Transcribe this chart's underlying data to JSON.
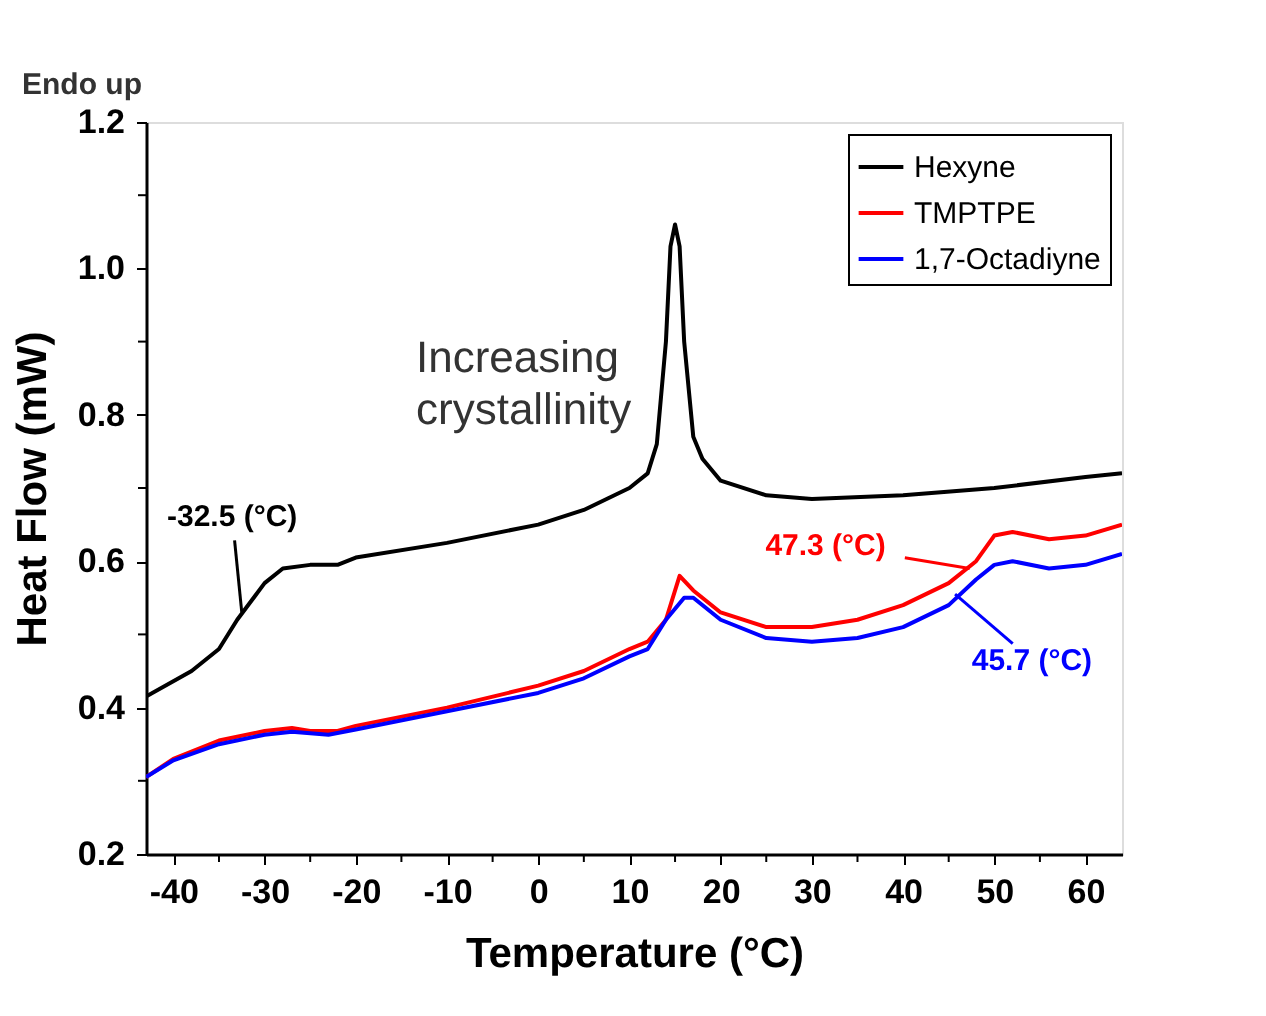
{
  "chart_data": {
    "type": "line",
    "xlabel": "Temperature (°C)",
    "ylabel": "Heat Flow (mW)",
    "xlim": [
      -43,
      64
    ],
    "ylim": [
      0.2,
      1.2
    ],
    "xticks": [
      -40,
      {
        "value": -35,
        "label": null
      },
      -30,
      {
        "value": -25,
        "label": null
      },
      -20,
      {
        "value": -15,
        "label": null
      },
      -10,
      {
        "value": -5,
        "label": null
      },
      0,
      {
        "value": 5,
        "label": null
      },
      10,
      {
        "value": 15,
        "label": null
      },
      20,
      {
        "value": 25,
        "label": null
      },
      30,
      {
        "value": 35,
        "label": null
      },
      40,
      {
        "value": 45,
        "label": null
      },
      50,
      {
        "value": 55,
        "label": null
      },
      60
    ],
    "yticks": [
      0.2,
      {
        "value": 0.3,
        "label": null
      },
      0.4,
      {
        "value": 0.5,
        "label": null
      },
      0.6,
      {
        "value": 0.7,
        "label": null
      },
      0.8,
      {
        "value": 0.9,
        "label": null
      },
      {
        "value": 1.0,
        "label": "1.0"
      },
      {
        "value": 1.1,
        "label": null
      },
      1.2
    ],
    "grid": false,
    "legend": "top right",
    "marker": "none",
    "line_style": "solid",
    "series": [
      {
        "name": "Hexyne",
        "color": "#000000",
        "x": [
          -43,
          -38,
          -35,
          -33,
          -30,
          -28,
          -25,
          -22,
          -20,
          -10,
          0,
          5,
          10,
          12,
          13,
          14,
          14.5,
          15,
          15.5,
          16,
          17,
          18,
          20,
          25,
          30,
          40,
          50,
          60,
          64
        ],
        "values": [
          0.415,
          0.45,
          0.48,
          0.52,
          0.57,
          0.59,
          0.595,
          0.595,
          0.605,
          0.625,
          0.65,
          0.67,
          0.7,
          0.72,
          0.76,
          0.9,
          1.03,
          1.06,
          1.03,
          0.9,
          0.77,
          0.74,
          0.71,
          0.69,
          0.685,
          0.69,
          0.7,
          0.715,
          0.72
        ]
      },
      {
        "name": "TMPTPE",
        "color": "#ff0000",
        "x": [
          -43,
          -40,
          -35,
          -30,
          -27,
          -25,
          -22,
          -20,
          -10,
          0,
          5,
          10,
          12,
          14,
          15.5,
          17,
          20,
          25,
          30,
          35,
          40,
          45,
          48,
          50,
          52,
          56,
          60,
          64
        ],
        "values": [
          0.305,
          0.33,
          0.355,
          0.368,
          0.372,
          0.368,
          0.368,
          0.375,
          0.4,
          0.43,
          0.45,
          0.48,
          0.49,
          0.52,
          0.58,
          0.56,
          0.53,
          0.51,
          0.51,
          0.52,
          0.54,
          0.57,
          0.6,
          0.635,
          0.64,
          0.63,
          0.635,
          0.65
        ]
      },
      {
        "name": "1,7-Octadiyne",
        "color": "#0000ff",
        "x": [
          -43,
          -40,
          -35,
          -30,
          -27,
          -23,
          -20,
          -10,
          0,
          5,
          10,
          12,
          14,
          16,
          17,
          20,
          25,
          30,
          35,
          40,
          45,
          48,
          50,
          52,
          56,
          60,
          64
        ],
        "values": [
          0.305,
          0.328,
          0.35,
          0.363,
          0.367,
          0.363,
          0.37,
          0.395,
          0.42,
          0.44,
          0.47,
          0.48,
          0.52,
          0.55,
          0.55,
          0.52,
          0.495,
          0.49,
          0.495,
          0.51,
          0.54,
          0.575,
          0.595,
          0.6,
          0.59,
          0.595,
          0.61
        ]
      }
    ],
    "annotations": [
      "Endo up",
      "Increasing crystallinity",
      {
        "text": "-32.5 (°C)",
        "x": -32.5,
        "y": 0.53
      },
      {
        "text": "47.3 (°C)",
        "x": 47.3,
        "y": 0.59
      },
      {
        "text": "45.7 (°C)",
        "x": 45.7,
        "y": 0.555
      }
    ]
  }
}
